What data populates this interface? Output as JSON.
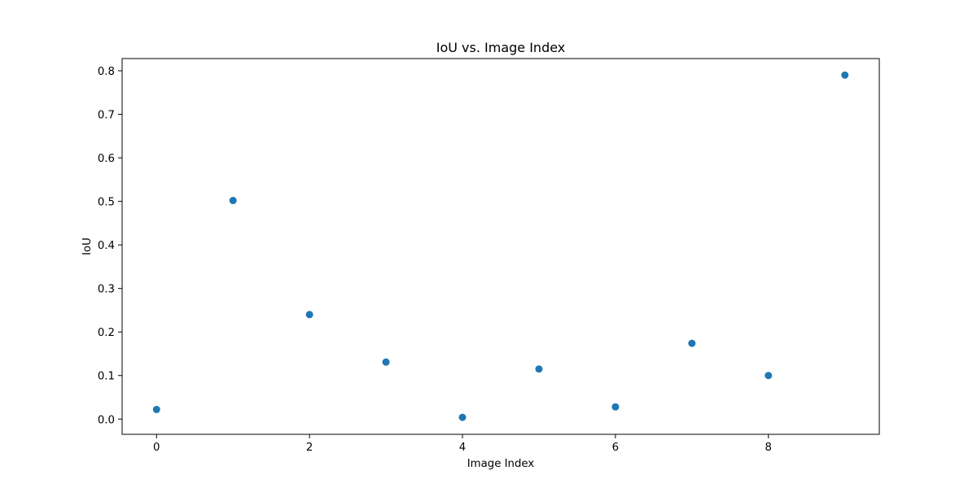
{
  "chart_data": {
    "type": "scatter",
    "title": "IoU vs. Image Index",
    "xlabel": "Image Index",
    "ylabel": "IoU",
    "x": [
      0,
      1,
      2,
      3,
      4,
      5,
      6,
      7,
      8,
      9
    ],
    "y": [
      0.022,
      0.502,
      0.24,
      0.131,
      0.004,
      0.115,
      0.028,
      0.174,
      0.1,
      0.79
    ],
    "xlim": [
      -0.45,
      9.45
    ],
    "ylim": [
      -0.035,
      0.828
    ],
    "xticks": [
      0,
      2,
      4,
      6,
      8
    ],
    "xtick_labels": [
      "0",
      "2",
      "4",
      "6",
      "8"
    ],
    "yticks": [
      0.0,
      0.1,
      0.2,
      0.3,
      0.4,
      0.5,
      0.6,
      0.7,
      0.8
    ],
    "ytick_labels": [
      "0.0",
      "0.1",
      "0.2",
      "0.3",
      "0.4",
      "0.5",
      "0.6",
      "0.7",
      "0.8"
    ],
    "grid": false,
    "legend": "none",
    "marker_color": "#1f77b4"
  }
}
